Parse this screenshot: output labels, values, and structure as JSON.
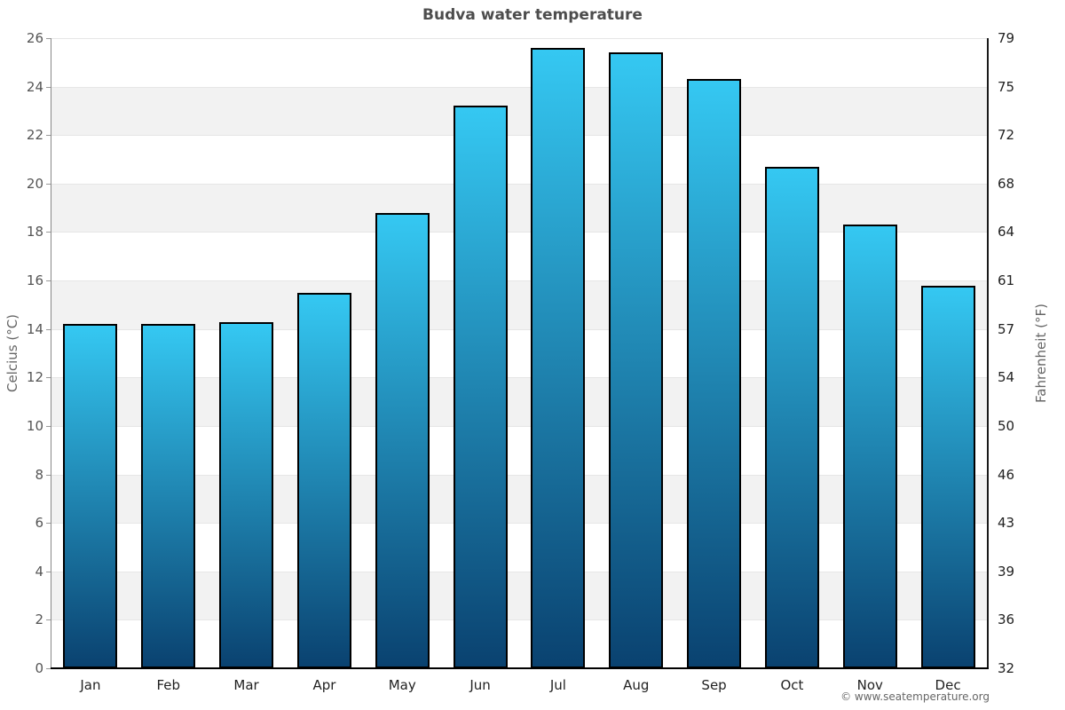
{
  "title": "Budva water temperature",
  "credit": "© www.seatemperature.org",
  "chart_data": {
    "type": "bar",
    "title": "Budva water temperature",
    "categories": [
      "Jan",
      "Feb",
      "Mar",
      "Apr",
      "May",
      "Jun",
      "Jul",
      "Aug",
      "Sep",
      "Oct",
      "Nov",
      "Dec"
    ],
    "values": [
      14.2,
      14.2,
      14.3,
      15.5,
      18.8,
      23.2,
      25.6,
      25.4,
      24.3,
      20.7,
      18.3,
      15.8
    ],
    "series_name": "Water temperature",
    "xlabel": "",
    "ylabel_left": "Celcius (°C)",
    "ylabel_right": "Fahrenheit (°F)",
    "ylim": [
      0,
      26
    ],
    "celsius_ticks": [
      0,
      2,
      4,
      6,
      8,
      10,
      12,
      14,
      16,
      18,
      20,
      22,
      24,
      26
    ],
    "fahrenheit_tick_labels": [
      "32",
      "36",
      "39",
      "43",
      "46",
      "50",
      "54",
      "57",
      "61",
      "64",
      "68",
      "72",
      "75",
      "79"
    ],
    "grid": "alternating horizontal bands, light gridlines at every tick",
    "legend": "none",
    "colors": {
      "bar_gradient_top": "#35c8f2",
      "bar_gradient_bottom": "#0a4270",
      "bar_border": "#000000",
      "band_fill": "#f2f2f2",
      "gridline": "#e6e6e6",
      "title_text": "#4d4d4d",
      "axis_title_text": "#666666",
      "left_tick_text": "#555555",
      "right_tick_text": "#222222",
      "month_label_text": "#222222",
      "credit_text": "#666666"
    }
  }
}
